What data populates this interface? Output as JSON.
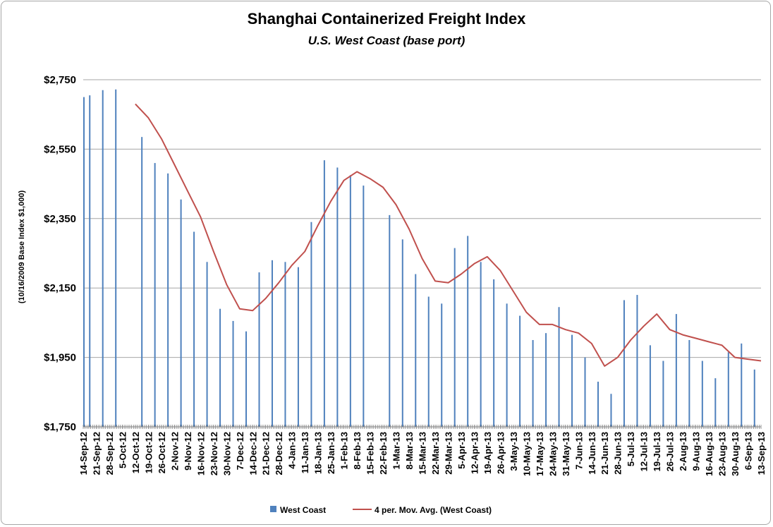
{
  "chart_data": {
    "type": "bar",
    "title": "Shanghai Containerized Freight Index",
    "subtitle": "U.S. West Coast (base port)",
    "ylabel": "(10/16/2009 Base Index $1,000)",
    "xlabel": "",
    "ylim": [
      1750,
      2750
    ],
    "yticks": [
      {
        "value": 1750,
        "label": "$1,750"
      },
      {
        "value": 1950,
        "label": "$1,950"
      },
      {
        "value": 2150,
        "label": "$2,150"
      },
      {
        "value": 2350,
        "label": "$2,350"
      },
      {
        "value": 2550,
        "label": "$2,550"
      },
      {
        "value": 2750,
        "label": "$2,750"
      }
    ],
    "grid": true,
    "legend_position": "bottom",
    "colors": {
      "bar": "#4f81bd",
      "line": "#c0504d",
      "grid": "#a6a6a6",
      "frame": "#a6a6a6"
    },
    "categories": [
      "14-Sep-12",
      "21-Sep-12",
      "28-Sep-12",
      "5-Oct-12",
      "12-Oct-12",
      "19-Oct-12",
      "26-Oct-12",
      "2-Nov-12",
      "9-Nov-12",
      "16-Nov-12",
      "23-Nov-12",
      "30-Nov-12",
      "7-Dec-12",
      "14-Dec-12",
      "21-Dec-12",
      "28-Dec-12",
      "4-Jan-13",
      "11-Jan-13",
      "18-Jan-13",
      "25-Jan-13",
      "1-Feb-13",
      "8-Feb-13",
      "15-Feb-13",
      "22-Feb-13",
      "1-Mar-13",
      "8-Mar-13",
      "15-Mar-13",
      "22-Mar-13",
      "29-Mar-13",
      "5-Apr-13",
      "12-Apr-13",
      "19-Apr-13",
      "26-Apr-13",
      "3-May-13",
      "10-May-13",
      "17-May-13",
      "24-May-13",
      "31-May-13",
      "7-Jun-13",
      "14-Jun-13",
      "21-Jun-13",
      "28-Jun-13",
      "5-Jul-13",
      "12-Jul-13",
      "19-Jul-13",
      "26-Jul-13",
      "2-Aug-13",
      "9-Aug-13",
      "16-Aug-13",
      "23-Aug-13",
      "30-Aug-13",
      "6-Sep-13",
      "13-Sep-13"
    ],
    "series": [
      {
        "name": "West Coast",
        "kind": "bar",
        "values": [
          2705,
          2720,
          2722,
          null,
          2585,
          2510,
          2480,
          2405,
          2312,
          2225,
          2090,
          2055,
          2025,
          2195,
          2230,
          2225,
          2210,
          2340,
          2518,
          2497,
          2475,
          2445,
          null,
          2360,
          2290,
          2190,
          2125,
          2105,
          2265,
          2300,
          2225,
          2175,
          2105,
          2070,
          2000,
          2020,
          2095,
          2015,
          1950,
          1880,
          1845,
          2115,
          2130,
          1985,
          1940,
          2075,
          2000,
          1940,
          1890,
          1965,
          1990,
          1915,
          null
        ],
        "lead_in_value": 2700
      },
      {
        "name": "4 per. Mov. Avg. (West Coast)",
        "kind": "line",
        "values": [
          null,
          null,
          null,
          null,
          2680,
          2640,
          2580,
          2505,
          2430,
          2355,
          2255,
          2160,
          2090,
          2085,
          2120,
          2165,
          2215,
          2255,
          2330,
          2400,
          2460,
          2485,
          2465,
          2440,
          2390,
          2320,
          2235,
          2170,
          2165,
          2190,
          2220,
          2240,
          2200,
          2140,
          2080,
          2045,
          2045,
          2030,
          2020,
          1990,
          1925,
          1950,
          2000,
          2040,
          2075,
          2030,
          2015,
          2005,
          1995,
          1985,
          1950,
          1945,
          1940
        ]
      }
    ]
  },
  "legend": {
    "bar_label": "West Coast",
    "line_label": "4 per. Mov. Avg. (West Coast)"
  }
}
